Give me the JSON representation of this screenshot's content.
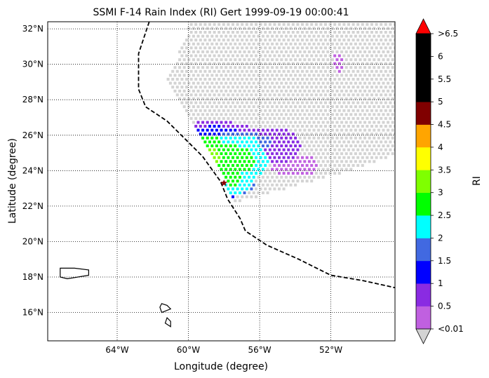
{
  "chart_data": {
    "type": "scatter",
    "title": "SSMI F-14 Rain Index (RI) Gert 1999-09-19 00:00:41",
    "xlabel": "Longitude (degree)",
    "ylabel": "Latitude (degree)",
    "xlim": [
      -67.9,
      -48.4
    ],
    "ylim": [
      14.4,
      32.4
    ],
    "grid": true,
    "x_ticks": [
      {
        "value": -64,
        "label": "64°W"
      },
      {
        "value": -60,
        "label": "60°W"
      },
      {
        "value": -56,
        "label": "56°W"
      },
      {
        "value": -52,
        "label": "52°W"
      }
    ],
    "y_ticks": [
      {
        "value": 16,
        "label": "16°N"
      },
      {
        "value": 18,
        "label": "18°N"
      },
      {
        "value": 20,
        "label": "20°N"
      },
      {
        "value": 22,
        "label": "22°N"
      },
      {
        "value": 24,
        "label": "24°N"
      },
      {
        "value": 26,
        "label": "26°N"
      },
      {
        "value": 28,
        "label": "28°N"
      },
      {
        "value": 30,
        "label": "30°N"
      },
      {
        "value": 32,
        "label": "32°N"
      }
    ],
    "colorbar": {
      "label": "RI",
      "bounds": [
        0.01,
        0.5,
        1,
        1.5,
        2,
        2.5,
        3,
        3.5,
        4,
        4.5,
        5,
        5.5,
        6,
        6.5
      ],
      "tick_labels": [
        "<0.01",
        "0.5",
        "1",
        "1.5",
        "2",
        "2.5",
        "3",
        "3.5",
        "4",
        "4.5",
        "5",
        "5.5",
        "6",
        ">6.5"
      ],
      "colors": [
        "#c060e0",
        "#8a2be2",
        "#0000ff",
        "#4169e1",
        "#00ffff",
        "#00ff00",
        "#7fff00",
        "#ffff00",
        "#ffa500",
        "#800000",
        "#000000",
        "#000000",
        "#000000"
      ],
      "under_color": "#d3d3d3",
      "over_color": "#ff0000"
    },
    "track": [
      [
        -62.2,
        32.4
      ],
      [
        -62.8,
        30.6
      ],
      [
        -62.8,
        28.6
      ],
      [
        -62.4,
        27.6
      ],
      [
        -61.2,
        26.8
      ],
      [
        -60.2,
        25.8
      ],
      [
        -59.2,
        24.8
      ],
      [
        -58.2,
        23.4
      ],
      [
        -57.8,
        22.4
      ],
      [
        -57.1,
        21.3
      ],
      [
        -56.8,
        20.6
      ],
      [
        -55.6,
        19.8
      ],
      [
        -53.8,
        19.0
      ],
      [
        -52.0,
        18.1
      ],
      [
        -50.2,
        17.8
      ],
      [
        -48.4,
        17.4
      ]
    ],
    "storm_center": [
      -58.0,
      23.3
    ],
    "swath": {
      "lon_range": [
        -61.2,
        -48.4
      ],
      "lat_min": 22.0,
      "lat_max_fn": "edge"
    },
    "rain_regions": [
      {
        "lon": -57.7,
        "lat": 24.6,
        "rx": 2.2,
        "ry": 1.3,
        "ri": 2.8
      },
      {
        "lon": -58.8,
        "lat": 24.8,
        "rx": 1.2,
        "ry": 1.2,
        "ri": 3.2
      },
      {
        "lon": -57.5,
        "lat": 23.5,
        "rx": 1.3,
        "ry": 0.9,
        "ri": 2.6
      },
      {
        "lon": -57.0,
        "lat": 25.6,
        "rx": 1.6,
        "ry": 0.6,
        "ri": 2.2
      },
      {
        "lon": -55.5,
        "lat": 25.4,
        "rx": 1.8,
        "ry": 1.1,
        "ri": 0.7
      },
      {
        "lon": -54.0,
        "lat": 24.3,
        "rx": 1.4,
        "ry": 0.6,
        "ri": 0.3
      },
      {
        "lon": -58.5,
        "lat": 26.1,
        "rx": 2.2,
        "ry": 0.7,
        "ri": 1.1
      },
      {
        "lon": -58.5,
        "lat": 22.4,
        "rx": 1.1,
        "ry": 0.9,
        "ri": 1.8
      },
      {
        "lon": -51.6,
        "lat": 30.1,
        "rx": 0.3,
        "ry": 0.6,
        "ri": 0.3
      }
    ],
    "land_polygons": [
      [
        [
          -67.2,
          18.5
        ],
        [
          -66.4,
          18.5
        ],
        [
          -65.6,
          18.4
        ],
        [
          -65.6,
          18.1
        ],
        [
          -66.8,
          17.9
        ],
        [
          -67.2,
          18.0
        ]
      ],
      [
        [
          -61.5,
          16.5
        ],
        [
          -61.2,
          16.4
        ],
        [
          -61.0,
          16.2
        ],
        [
          -61.5,
          16.0
        ],
        [
          -61.6,
          16.3
        ]
      ],
      [
        [
          -61.2,
          15.7
        ],
        [
          -61.0,
          15.5
        ],
        [
          -61.0,
          15.2
        ],
        [
          -61.3,
          15.4
        ]
      ]
    ]
  }
}
